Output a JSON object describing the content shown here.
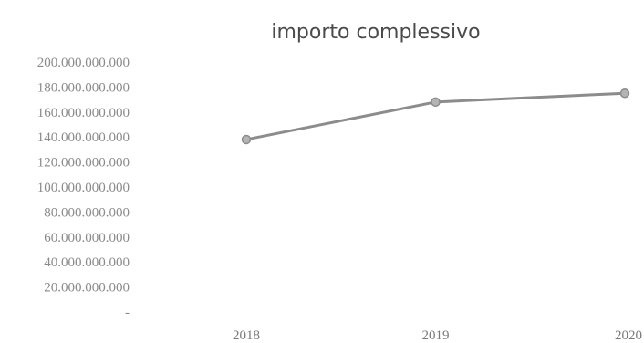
{
  "chart_data": {
    "type": "line",
    "title": "importo complessivo",
    "xlabel": "",
    "ylabel": "",
    "categories": [
      "2018",
      "2019",
      "2020"
    ],
    "series": [
      {
        "values": [
          138000000000,
          168000000000,
          175000000000
        ]
      }
    ],
    "ylim": [
      0,
      200000000000
    ],
    "yticks": [
      0,
      20000000000,
      40000000000,
      60000000000,
      80000000000,
      100000000000,
      120000000000,
      140000000000,
      160000000000,
      180000000000,
      200000000000
    ],
    "ytick_labels": [
      "-",
      "20.000.000.000",
      "40.000.000.000",
      "60.000.000.000",
      "80.000.000.000",
      "100.000.000.000",
      "120.000.000.000",
      "140.000.000.000",
      "160.000.000.000",
      "180.000.000.000",
      "200.000.000.000"
    ],
    "grid": false,
    "legend": "none",
    "colors": {
      "line": "#8c8c8c",
      "marker_fill": "#b4b4b4",
      "marker_stroke": "#8c8c8c"
    }
  }
}
